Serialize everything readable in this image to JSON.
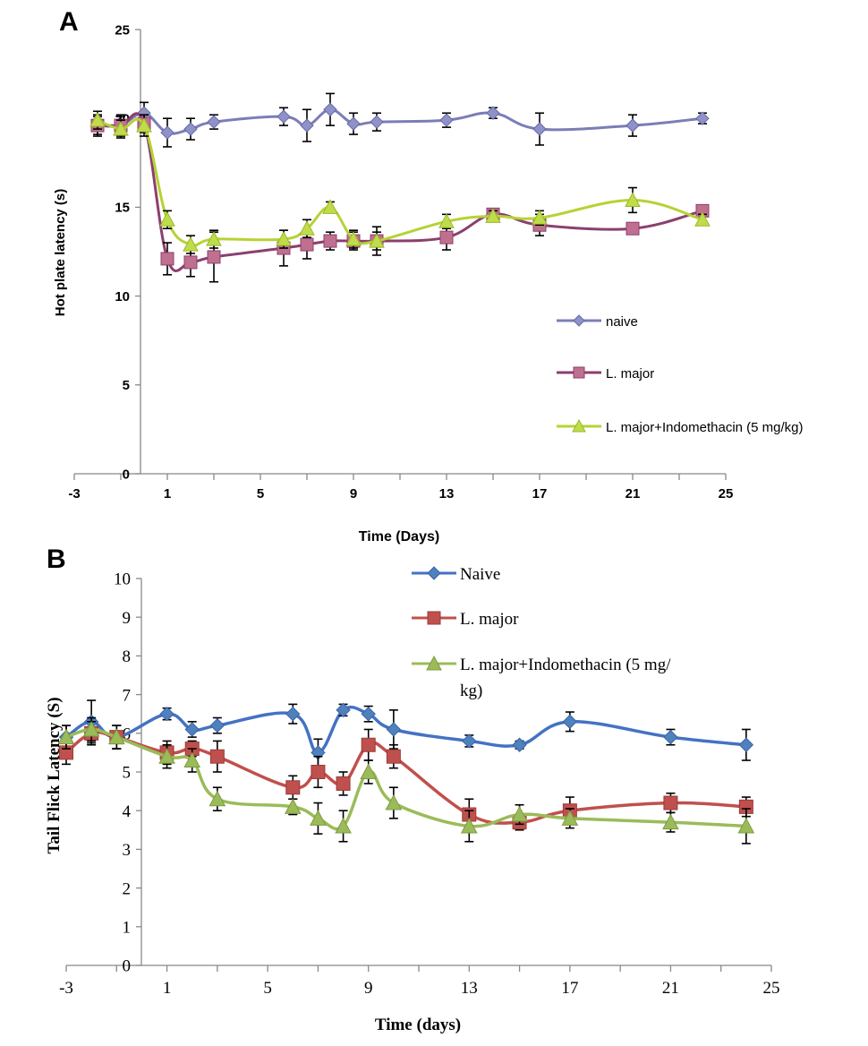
{
  "chart_data": [
    {
      "panel": "A",
      "type": "line",
      "xlabel": "Time (Days)",
      "ylabel": "Hot plate latency (s)",
      "xlim": [
        -3,
        25
      ],
      "ylim": [
        0,
        25
      ],
      "xticks": [
        -3,
        1,
        5,
        9,
        13,
        17,
        21,
        25
      ],
      "yticks": [
        0,
        5,
        10,
        15,
        20,
        25
      ],
      "legend_position": "right",
      "series": [
        {
          "name": "naive",
          "color": "#7B7EB5",
          "marker": "diamond",
          "x": [
            -2,
            -1,
            0,
            1,
            2,
            3,
            6,
            7,
            8,
            9,
            10,
            13,
            15,
            17,
            21,
            24
          ],
          "y": [
            19.6,
            19.6,
            20.3,
            19.2,
            19.4,
            19.8,
            20.1,
            19.6,
            20.5,
            19.7,
            19.8,
            19.9,
            20.3,
            19.4,
            19.6,
            20.0
          ],
          "err": [
            0.6,
            0.6,
            0.6,
            0.8,
            0.6,
            0.4,
            0.5,
            0.9,
            0.9,
            0.6,
            0.5,
            0.4,
            0.3,
            0.9,
            0.6,
            0.3
          ]
        },
        {
          "name": "L. major",
          "color": "#8B3F6E",
          "marker": "square",
          "x": [
            -2,
            -1,
            0,
            1,
            2,
            3,
            6,
            7,
            8,
            9,
            10,
            13,
            15,
            17,
            21,
            24
          ],
          "y": [
            19.6,
            19.6,
            19.7,
            12.1,
            11.9,
            12.2,
            12.7,
            12.9,
            13.1,
            13.1,
            13.1,
            13.3,
            14.6,
            14.0,
            13.8,
            14.8
          ],
          "err": [
            0.5,
            0.5,
            0.5,
            0.9,
            0.8,
            1.4,
            1.0,
            0.8,
            0.5,
            0.5,
            0.8,
            0.7,
            0.3,
            0.6,
            0.3,
            0.3
          ]
        },
        {
          "name": "L. major+Indomethacin (5 mg/kg)",
          "color": "#B5D334",
          "marker": "triangle",
          "x": [
            -2,
            -1,
            0,
            1,
            2,
            3,
            6,
            7,
            8,
            9,
            10,
            13,
            15,
            17,
            21,
            24
          ],
          "y": [
            19.9,
            19.4,
            19.6,
            14.3,
            12.9,
            13.2,
            13.2,
            13.8,
            15.0,
            13.2,
            13.1,
            14.2,
            14.5,
            14.4,
            15.4,
            14.3
          ],
          "err": [
            0.5,
            0.5,
            0.6,
            0.5,
            0.5,
            0.5,
            0.5,
            0.5,
            0.3,
            0.5,
            0.5,
            0.4,
            0.3,
            0.4,
            0.7,
            0.3
          ]
        }
      ]
    },
    {
      "panel": "B",
      "type": "line",
      "xlabel": "Time (days)",
      "ylabel": "Tail Flick Latency (S)",
      "xlim": [
        -3,
        25
      ],
      "ylim": [
        0,
        10
      ],
      "xticks": [
        -3,
        1,
        5,
        9,
        13,
        17,
        21,
        25
      ],
      "yticks": [
        0,
        1,
        2,
        3,
        4,
        5,
        6,
        7,
        8,
        9,
        10
      ],
      "legend_position": "top-center",
      "series": [
        {
          "name": "Naive",
          "color": "#4472C4",
          "marker": "diamond",
          "x": [
            -3,
            -2,
            -1,
            1,
            2,
            3,
            6,
            7,
            8,
            9,
            10,
            13,
            15,
            17,
            21,
            24
          ],
          "y": [
            5.9,
            6.3,
            5.9,
            6.5,
            6.1,
            6.2,
            6.5,
            5.5,
            6.6,
            6.5,
            6.1,
            5.8,
            5.7,
            6.3,
            5.9,
            5.7
          ],
          "err": [
            0.3,
            0.55,
            0.3,
            0.15,
            0.2,
            0.2,
            0.25,
            0.35,
            0.15,
            0.2,
            0.5,
            0.15,
            0.1,
            0.25,
            0.2,
            0.4
          ]
        },
        {
          "name": "L. major",
          "color": "#C0504D",
          "marker": "square",
          "x": [
            -3,
            -2,
            -1,
            1,
            2,
            3,
            6,
            7,
            8,
            9,
            10,
            13,
            15,
            17,
            21,
            24
          ],
          "y": [
            5.5,
            6.0,
            5.9,
            5.5,
            5.6,
            5.4,
            4.6,
            5.0,
            4.7,
            5.7,
            5.4,
            3.9,
            3.7,
            4.0,
            4.2,
            4.1
          ],
          "err": [
            0.3,
            0.3,
            0.3,
            0.3,
            0.2,
            0.4,
            0.3,
            0.4,
            0.3,
            0.4,
            0.3,
            0.4,
            0.2,
            0.35,
            0.25,
            0.25
          ]
        },
        {
          "name": "L. major+Indomethacin (5 mg/ kg)",
          "color": "#9BBB59",
          "marker": "triangle",
          "x": [
            -3,
            -2,
            -1,
            1,
            2,
            3,
            6,
            7,
            8,
            9,
            10,
            13,
            15,
            17,
            21,
            24
          ],
          "y": [
            5.9,
            6.1,
            5.9,
            5.4,
            5.3,
            4.3,
            4.1,
            3.8,
            3.6,
            5.0,
            4.2,
            3.6,
            3.9,
            3.8,
            3.7,
            3.6
          ],
          "err": [
            0.3,
            0.3,
            0.3,
            0.3,
            0.3,
            0.3,
            0.2,
            0.4,
            0.4,
            0.3,
            0.4,
            0.4,
            0.25,
            0.25,
            0.25,
            0.45
          ]
        }
      ]
    }
  ]
}
